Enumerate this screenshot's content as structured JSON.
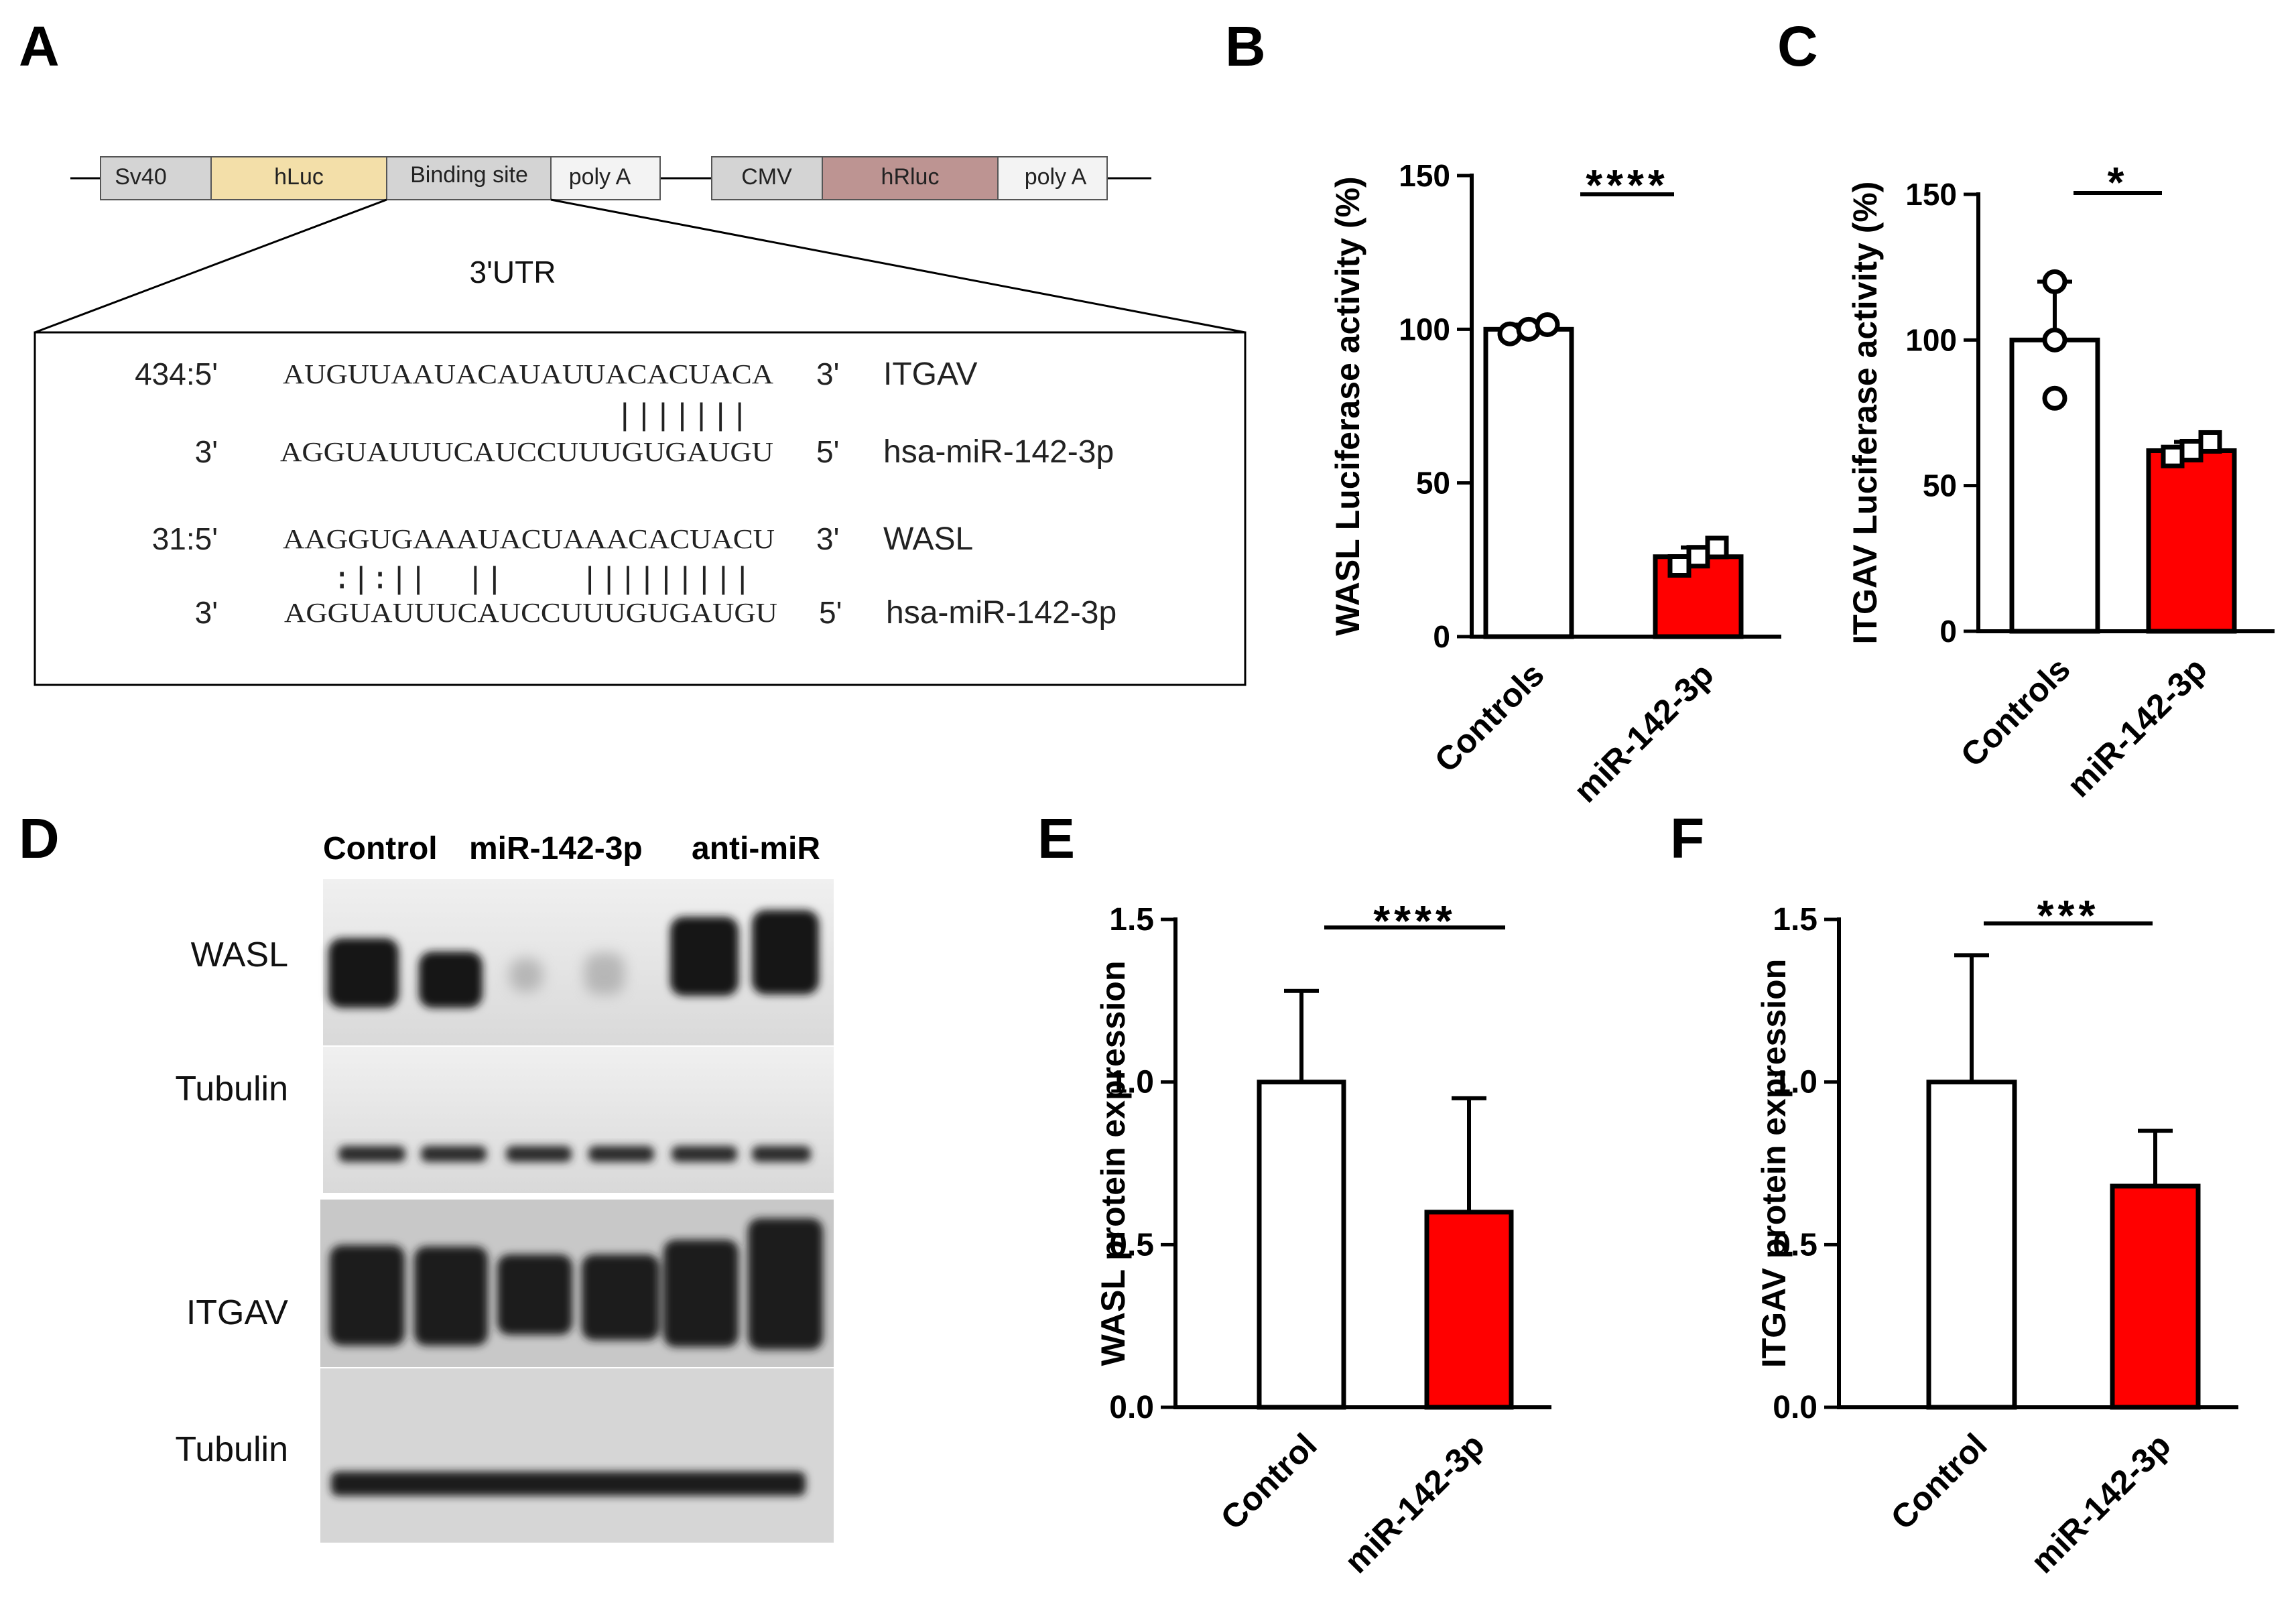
{
  "panels": {
    "a": "A",
    "b": "B",
    "c": "C",
    "d": "D",
    "e": "E",
    "f": "F"
  },
  "construct": {
    "segments": [
      "Sv40",
      "hLuc",
      "Binding site",
      "poly A",
      "CMV",
      "hRluc",
      "poly A"
    ],
    "utr_label": "3'UTR"
  },
  "alignment": {
    "itgav": {
      "pos": "434:5'",
      "target": "AUGUUAAUACAUAUUACACUACA",
      "target_end": "3'",
      "gene": "ITGAV",
      "pairing": "|||||||",
      "mir_start": "3'",
      "mir": "AGGUAUUUCAUCCUUUGUGAUGU",
      "mir_end": "5'",
      "mir_name": "hsa-miR-142-3p"
    },
    "wasl": {
      "pos": "31:5'",
      "target": "AAGGUGAAAUACUAAACACUACU",
      "target_end": "3'",
      "gene": "WASL",
      "pairing": ":|:||  ||    |||||||||",
      "mir_start": "3'",
      "mir": "AGGUAUUUCAUCCUUUGUGAUGU",
      "mir_end": "5'",
      "mir_name": "hsa-miR-142-3p"
    }
  },
  "western": {
    "lanes": [
      "Control",
      "miR-142-3p",
      "anti-miR"
    ],
    "bands": [
      "WASL",
      "Tubulin",
      "ITGAV",
      "Tubulin"
    ]
  },
  "colors": {
    "treated": "#ff0000",
    "control": "#ffffff",
    "stroke": "#000000"
  },
  "chart_data": [
    {
      "panel": "B",
      "type": "bar",
      "categories": [
        "Controls",
        "miR-142-3p"
      ],
      "values": [
        100,
        26
      ],
      "errors": [
        1.5,
        3
      ],
      "points": [
        [
          98.5,
          100,
          101.5
        ],
        [
          23,
          26,
          29
        ]
      ],
      "ylabel": "WASL  Luciferase activity (%)",
      "ylim": [
        0,
        150
      ],
      "yticks": [
        "0",
        "50",
        "100",
        "150"
      ],
      "significance": "****"
    },
    {
      "panel": "C",
      "type": "bar",
      "categories": [
        "Controls",
        "miR-142-3p"
      ],
      "values": [
        100,
        62
      ],
      "errors": [
        20,
        3
      ],
      "points": [
        [
          80,
          100,
          120
        ],
        [
          60,
          62,
          65
        ]
      ],
      "ylabel": "ITGAV Luciferase activity (%)",
      "ylim": [
        0,
        150
      ],
      "yticks": [
        "0",
        "50",
        "100",
        "150"
      ],
      "significance": "*"
    },
    {
      "panel": "E",
      "type": "bar",
      "categories": [
        "Control",
        "miR-142-3p"
      ],
      "values": [
        1.0,
        0.6
      ],
      "errors": [
        0.28,
        0.35
      ],
      "points": [],
      "ylabel": "WASL protein expression",
      "ylim": [
        0,
        1.5
      ],
      "yticks": [
        "0.0",
        "0.5",
        "1.0",
        "1.5"
      ],
      "significance": "****"
    },
    {
      "panel": "F",
      "type": "bar",
      "categories": [
        "Control",
        "miR-142-3p"
      ],
      "values": [
        1.0,
        0.68
      ],
      "errors": [
        0.39,
        0.17
      ],
      "points": [],
      "ylabel": "ITGAV protein expression",
      "ylim": [
        0,
        1.5
      ],
      "yticks": [
        "0.0",
        "0.5",
        "1.0",
        "1.5"
      ],
      "significance": "***"
    }
  ]
}
